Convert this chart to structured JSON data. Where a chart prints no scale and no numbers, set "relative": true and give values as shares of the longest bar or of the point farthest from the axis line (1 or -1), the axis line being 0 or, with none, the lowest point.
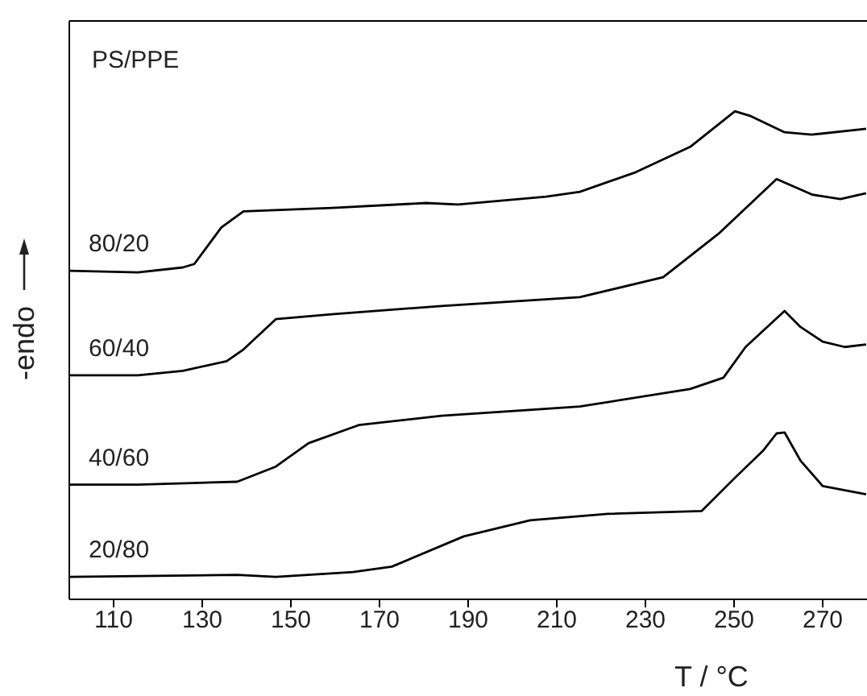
{
  "chart_data": {
    "type": "line",
    "relative": true,
    "xlabel": "T / °C",
    "ylabel": "-endo",
    "annotations": [
      "PS/PPE"
    ],
    "xlim": [
      100,
      280
    ],
    "xticks": [
      110,
      130,
      150,
      170,
      190,
      210,
      230,
      250,
      270
    ],
    "tick_labels": "x",
    "grid": false,
    "legend": false,
    "marker": "none",
    "line_style": "solid",
    "series": [
      {
        "name": "80/20",
        "color": "#000000",
        "x": [
          100,
          115.5,
          125.6,
          128.2,
          134.3,
          139.3,
          159.2,
          180.5,
          187.7,
          207.6,
          215.2,
          227.8,
          240.1,
          250.2,
          253.8,
          261.4,
          267.5,
          279.8
        ],
        "values": [
          0.673,
          0.67,
          0.68,
          0.687,
          0.762,
          0.795,
          0.802,
          0.812,
          0.809,
          0.825,
          0.835,
          0.875,
          0.927,
          1.0,
          0.99,
          0.957,
          0.952,
          0.964
        ]
      },
      {
        "name": "60/40",
        "color": "#000000",
        "x": [
          100,
          115.5,
          125.6,
          135.5,
          139.3,
          146.6,
          159.2,
          184,
          215.2,
          234,
          246.5,
          259.6,
          267.7,
          274,
          279.8
        ],
        "values": [
          0.459,
          0.459,
          0.468,
          0.488,
          0.512,
          0.574,
          0.584,
          0.601,
          0.619,
          0.66,
          0.749,
          0.861,
          0.829,
          0.82,
          0.832
        ]
      },
      {
        "name": "40/60",
        "color": "#000000",
        "x": [
          100,
          115.5,
          137.9,
          146.6,
          154,
          165.3,
          184,
          215.2,
          240.1,
          247.6,
          252.6,
          261.4,
          265,
          270,
          275,
          279.8
        ],
        "values": [
          0.235,
          0.235,
          0.241,
          0.272,
          0.32,
          0.357,
          0.376,
          0.395,
          0.431,
          0.454,
          0.517,
          0.591,
          0.558,
          0.528,
          0.517,
          0.522
        ]
      },
      {
        "name": "20/80",
        "color": "#000000",
        "x": [
          100,
          137.9,
          146.6,
          164,
          172.8,
          189,
          204,
          221.5,
          242.7,
          250.2,
          256.5,
          259.6,
          261.4,
          265,
          270,
          279.8
        ],
        "values": [
          0.046,
          0.05,
          0.046,
          0.056,
          0.067,
          0.129,
          0.162,
          0.175,
          0.181,
          0.249,
          0.304,
          0.34,
          0.342,
          0.284,
          0.232,
          0.215
        ]
      }
    ]
  }
}
